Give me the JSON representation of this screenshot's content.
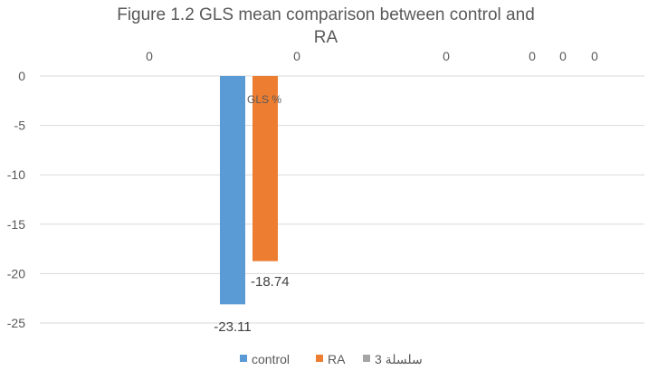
{
  "chart_data": {
    "type": "bar",
    "title_lines": [
      "Figure 1.2 GLS  mean comparison between control and",
      "RA"
    ],
    "axis_title": "GLS %",
    "categories": [
      "0",
      "0",
      "0",
      "0",
      "0",
      "0"
    ],
    "series": [
      {
        "name": "control",
        "color": "#5B9BD5",
        "values": [
          null,
          -23.11,
          null,
          null,
          null,
          null
        ]
      },
      {
        "name": "RA",
        "color": "#ED7D31",
        "values": [
          null,
          -18.74,
          null,
          null,
          null,
          null
        ]
      },
      {
        "name": "سلسلة 3",
        "color": "#A5A5A5",
        "values": [
          null,
          null,
          null,
          null,
          null,
          null
        ]
      }
    ],
    "data_labels": [
      "-23.11",
      "-18.74"
    ],
    "ylim": [
      -25,
      0
    ],
    "yticks": [
      "0",
      "-5",
      "-10",
      "-15",
      "-20",
      "-25"
    ],
    "grid": true,
    "legend_position": "bottom"
  }
}
